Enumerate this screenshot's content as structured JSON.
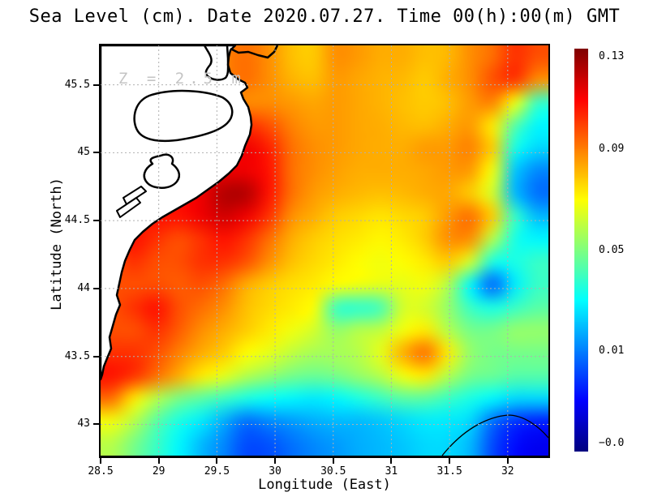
{
  "figure": {
    "title": "Sea Level (cm). Date 2020.07.27. Time 00(h):00(m) GMT",
    "annotation": "Z = 2.5 m"
  },
  "axes": {
    "x_label": "Longitude (East)",
    "y_label": "Latitude (North)",
    "x_tick_labels": [
      "28.5",
      "29",
      "29.5",
      "30",
      "30.5",
      "31",
      "31.5",
      "32"
    ],
    "y_tick_labels": [
      "45.5",
      "45",
      "44.5",
      "44",
      "43.5",
      "43"
    ]
  },
  "colorbar": {
    "tick_labels": [
      "0.13",
      "0.09",
      "0.05",
      "0.01",
      "−0.0"
    ],
    "tick_fractions_from_top": [
      0.02,
      0.25,
      0.5,
      0.75,
      0.98
    ],
    "colormap": "jet",
    "top_color": "#800000",
    "bottom_color": "#000080"
  },
  "chart_data": {
    "type": "heatmap",
    "title": "Sea Level (cm). Date 2020.07.27. Time 00(h):00(m) GMT",
    "xlabel": "Longitude (East)",
    "ylabel": "Latitude (North)",
    "units": "cm",
    "x_range": [
      28.5,
      32.35
    ],
    "y_range": [
      42.77,
      45.79
    ],
    "x_ticks": [
      28.5,
      29,
      29.5,
      30,
      30.5,
      31,
      31.5,
      32
    ],
    "y_ticks": [
      45.5,
      45,
      44.5,
      44,
      43.5,
      43
    ],
    "grid_on": true,
    "colorbar_ticks": [
      0.13,
      0.09,
      0.05,
      0.01,
      -0.0
    ],
    "color_scale": {
      "vmin": -0.03,
      "vmax": 0.133,
      "colormap": "jet"
    },
    "annotation": "Z = 2.5 m",
    "grid_shape": [
      18,
      20
    ],
    "grid_origin": "northwest",
    "values": [
      [
        0.09,
        0.09,
        0.09,
        0.09,
        0.09,
        0.092,
        0.095,
        0.09,
        0.082,
        0.08,
        0.09,
        0.088,
        0.085,
        0.085,
        0.082,
        0.083,
        0.09,
        0.095,
        0.105,
        0.1
      ],
      [
        0.09,
        0.09,
        0.09,
        0.09,
        0.09,
        0.092,
        0.095,
        0.09,
        0.084,
        0.082,
        0.088,
        0.086,
        0.084,
        0.083,
        0.08,
        0.085,
        0.09,
        0.1,
        0.105,
        0.09
      ],
      [
        0.09,
        0.09,
        0.09,
        0.09,
        0.092,
        0.095,
        0.09,
        0.09,
        0.088,
        0.086,
        0.088,
        0.086,
        0.084,
        0.082,
        0.08,
        0.082,
        0.088,
        0.092,
        0.07,
        0.04
      ],
      [
        0.095,
        0.095,
        0.095,
        0.095,
        0.1,
        0.1,
        0.105,
        0.1,
        0.092,
        0.088,
        0.088,
        0.086,
        0.085,
        0.083,
        0.082,
        0.085,
        0.088,
        0.075,
        0.045,
        0.03
      ],
      [
        0.1,
        0.1,
        0.1,
        0.1,
        0.105,
        0.11,
        0.115,
        0.108,
        0.095,
        0.09,
        0.088,
        0.086,
        0.085,
        0.085,
        0.088,
        0.088,
        0.092,
        0.08,
        0.035,
        0.025
      ],
      [
        0.1,
        0.1,
        0.1,
        0.105,
        0.11,
        0.115,
        0.115,
        0.11,
        0.095,
        0.09,
        0.087,
        0.085,
        0.085,
        0.085,
        0.086,
        0.088,
        0.088,
        0.07,
        0.022,
        0.012
      ],
      [
        0.1,
        0.1,
        0.105,
        0.11,
        0.115,
        0.125,
        0.125,
        0.11,
        0.095,
        0.088,
        0.085,
        0.083,
        0.082,
        0.083,
        0.085,
        0.086,
        0.08,
        0.065,
        0.02,
        0.008
      ],
      [
        0.105,
        0.105,
        0.11,
        0.11,
        0.115,
        0.12,
        0.115,
        0.105,
        0.09,
        0.085,
        0.08,
        0.078,
        0.076,
        0.078,
        0.08,
        0.088,
        0.095,
        0.08,
        0.04,
        0.02
      ],
      [
        0.105,
        0.11,
        0.105,
        0.1,
        0.105,
        0.11,
        0.105,
        0.095,
        0.085,
        0.08,
        0.077,
        0.075,
        0.073,
        0.075,
        0.08,
        0.09,
        0.09,
        0.06,
        0.035,
        0.03
      ],
      [
        0.1,
        0.105,
        0.1,
        0.1,
        0.105,
        0.105,
        0.1,
        0.09,
        0.082,
        0.078,
        0.075,
        0.072,
        0.07,
        0.072,
        0.075,
        0.08,
        0.065,
        0.035,
        0.035,
        0.04
      ],
      [
        0.1,
        0.1,
        0.1,
        0.098,
        0.1,
        0.095,
        0.085,
        0.08,
        0.077,
        0.075,
        0.072,
        0.07,
        0.068,
        0.068,
        0.07,
        0.06,
        0.03,
        0.006,
        0.028,
        0.04
      ],
      [
        0.1,
        0.105,
        0.11,
        0.1,
        0.095,
        0.09,
        0.082,
        0.078,
        0.075,
        0.072,
        0.04,
        0.038,
        0.042,
        0.065,
        0.065,
        0.055,
        0.04,
        0.035,
        0.04,
        0.045
      ],
      [
        0.1,
        0.1,
        0.105,
        0.098,
        0.09,
        0.085,
        0.08,
        0.075,
        0.07,
        0.065,
        0.055,
        0.06,
        0.062,
        0.07,
        0.075,
        0.06,
        0.05,
        0.05,
        0.055,
        0.055
      ],
      [
        0.105,
        0.105,
        0.1,
        0.092,
        0.085,
        0.08,
        0.072,
        0.068,
        0.062,
        0.058,
        0.058,
        0.06,
        0.068,
        0.085,
        0.095,
        0.075,
        0.055,
        0.05,
        0.05,
        0.05
      ],
      [
        0.11,
        0.105,
        0.095,
        0.085,
        0.075,
        0.068,
        0.06,
        0.055,
        0.05,
        0.048,
        0.05,
        0.055,
        0.06,
        0.07,
        0.075,
        0.06,
        0.05,
        0.048,
        0.045,
        0.045
      ],
      [
        0.095,
        0.075,
        0.06,
        0.05,
        0.045,
        0.04,
        0.035,
        0.032,
        0.03,
        0.028,
        0.03,
        0.035,
        0.04,
        0.045,
        0.045,
        0.04,
        0.035,
        0.03,
        0.025,
        0.025
      ],
      [
        0.07,
        0.06,
        0.045,
        0.035,
        0.028,
        0.018,
        0.008,
        0.012,
        0.015,
        0.018,
        0.02,
        0.02,
        0.022,
        0.025,
        0.028,
        0.028,
        0.025,
        0.008,
        -0.002,
        -0.005
      ],
      [
        0.06,
        0.05,
        0.04,
        0.03,
        0.02,
        0.012,
        0.002,
        0.003,
        0.008,
        0.012,
        0.015,
        0.018,
        0.02,
        0.022,
        0.025,
        0.025,
        0.02,
        0.002,
        -0.008,
        -0.012
      ]
    ]
  }
}
